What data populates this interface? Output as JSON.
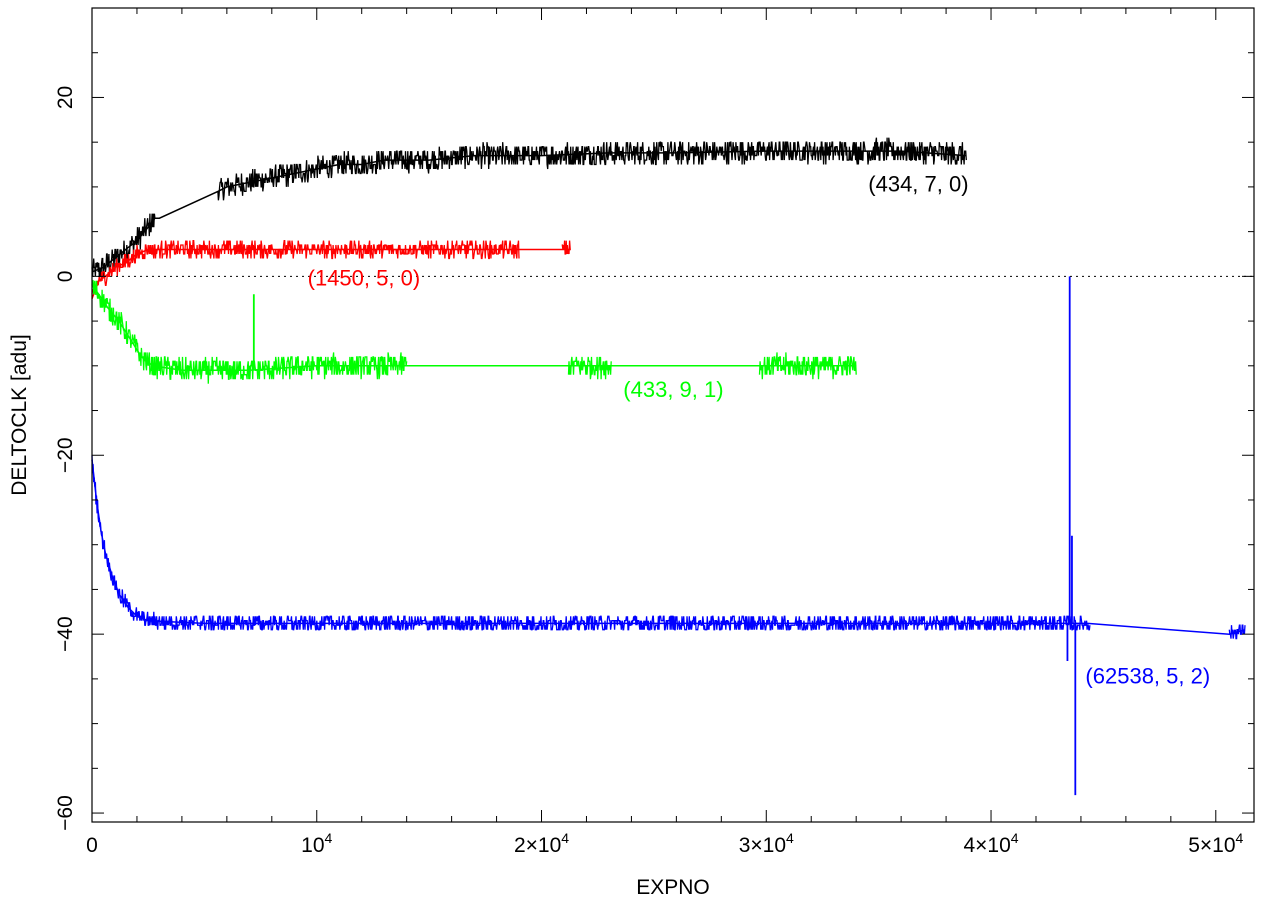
{
  "chart_data": {
    "type": "line",
    "title": "",
    "xlabel": "EXPNO",
    "ylabel": "DELTOCLK [adu]",
    "xlim": [
      0,
      51700
    ],
    "ylim": [
      -61,
      30
    ],
    "grid": false,
    "reference_line": {
      "y": 0,
      "style": "dotted"
    },
    "x_ticks": [
      {
        "value": 0,
        "label": "0",
        "base": "",
        "exp": ""
      },
      {
        "value": 10000,
        "label": "",
        "base": "10",
        "exp": "4"
      },
      {
        "value": 20000,
        "label": "",
        "base": "2×10",
        "exp": "4"
      },
      {
        "value": 30000,
        "label": "",
        "base": "3×10",
        "exp": "4"
      },
      {
        "value": 40000,
        "label": "",
        "base": "4×10",
        "exp": "4"
      },
      {
        "value": 50000,
        "label": "",
        "base": "5×10",
        "exp": "4"
      }
    ],
    "x_minor_step": 2000,
    "y_ticks": [
      {
        "value": 20,
        "label": "20"
      },
      {
        "value": 0,
        "label": "0"
      },
      {
        "value": -20,
        "label": "−20"
      },
      {
        "value": -40,
        "label": "−40"
      },
      {
        "value": -60,
        "label": "−60"
      }
    ],
    "y_minor_step": 5,
    "series": [
      {
        "label": "(434, 7, 0)",
        "color": "#000000",
        "label_anchor": {
          "x": 39000,
          "y": 9.5
        },
        "points": [
          [
            0,
            0.5
          ],
          [
            500,
            1
          ],
          [
            1000,
            2
          ],
          [
            1500,
            3
          ],
          [
            2000,
            4
          ],
          [
            2500,
            5.5
          ],
          [
            2800,
            6.5
          ],
          [
            3000,
            6.5
          ],
          [
            5600,
            9.5
          ],
          [
            6000,
            10
          ],
          [
            7000,
            10.5
          ],
          [
            8000,
            11
          ],
          [
            9000,
            11.5
          ],
          [
            10000,
            12
          ],
          [
            11000,
            12.5
          ],
          [
            12000,
            12.5
          ],
          [
            13000,
            13
          ],
          [
            15000,
            13
          ],
          [
            17000,
            13.5
          ],
          [
            20000,
            13.5
          ],
          [
            23000,
            13.8
          ],
          [
            26000,
            13.8
          ],
          [
            30000,
            14
          ],
          [
            33000,
            14
          ],
          [
            36000,
            14
          ],
          [
            38900,
            13.5
          ]
        ],
        "noise": 1.3,
        "gaps": [
          [
            2800,
            5600
          ]
        ]
      },
      {
        "label": "(1450, 5, 0)",
        "color": "#ff0000",
        "label_anchor": {
          "x": 14600,
          "y": -1
        },
        "points": [
          [
            0,
            -2.5
          ],
          [
            300,
            -0.5
          ],
          [
            600,
            0
          ],
          [
            1000,
            1
          ],
          [
            1500,
            1.5
          ],
          [
            2000,
            2.5
          ],
          [
            2500,
            3
          ],
          [
            4000,
            3
          ],
          [
            8000,
            3
          ],
          [
            12000,
            3
          ],
          [
            16000,
            3
          ],
          [
            19000,
            3
          ],
          [
            21300,
            3
          ]
        ],
        "noise": 0.9,
        "gaps": [
          [
            19000,
            20900
          ]
        ]
      },
      {
        "label": "(433, 9, 1)",
        "color": "#00ff00",
        "label_anchor": {
          "x": 28100,
          "y": -13.5
        },
        "points": [
          [
            0,
            -1
          ],
          [
            300,
            -2
          ],
          [
            700,
            -3.5
          ],
          [
            1200,
            -5
          ],
          [
            1700,
            -7
          ],
          [
            2200,
            -9
          ],
          [
            2700,
            -10
          ],
          [
            4000,
            -10.5
          ],
          [
            7000,
            -10.5
          ],
          [
            10000,
            -10
          ],
          [
            14000,
            -10
          ],
          [
            21000,
            -10
          ],
          [
            23000,
            -10
          ],
          [
            30000,
            -10
          ],
          [
            34000,
            -10
          ]
        ],
        "noise": 1.3,
        "gaps": [
          [
            14000,
            21200
          ],
          [
            23100,
            29700
          ]
        ],
        "spikes": [
          {
            "x": 7200,
            "y": -2
          }
        ]
      },
      {
        "label": "(62538, 5, 2)",
        "color": "#0000ff",
        "label_anchor": {
          "x": 44200,
          "y": -45.5
        },
        "points": [
          [
            0,
            -20.5
          ],
          [
            200,
            -25
          ],
          [
            400,
            -28.5
          ],
          [
            600,
            -31
          ],
          [
            900,
            -33.5
          ],
          [
            1200,
            -35.5
          ],
          [
            1600,
            -37
          ],
          [
            2000,
            -38
          ],
          [
            2500,
            -38.5
          ],
          [
            5000,
            -38.8
          ],
          [
            10000,
            -38.8
          ],
          [
            20000,
            -38.8
          ],
          [
            30000,
            -38.8
          ],
          [
            40000,
            -38.8
          ],
          [
            44300,
            -38.8
          ],
          [
            50600,
            -40
          ],
          [
            51300,
            -39.5
          ]
        ],
        "noise": 0.9,
        "gaps": [
          [
            44400,
            50600
          ]
        ],
        "spikes": [
          {
            "x": 43500,
            "y": 0
          },
          {
            "x": 43600,
            "y": -29
          },
          {
            "x": 43750,
            "y": -58
          },
          {
            "x": 43400,
            "y": -43
          }
        ]
      }
    ]
  }
}
